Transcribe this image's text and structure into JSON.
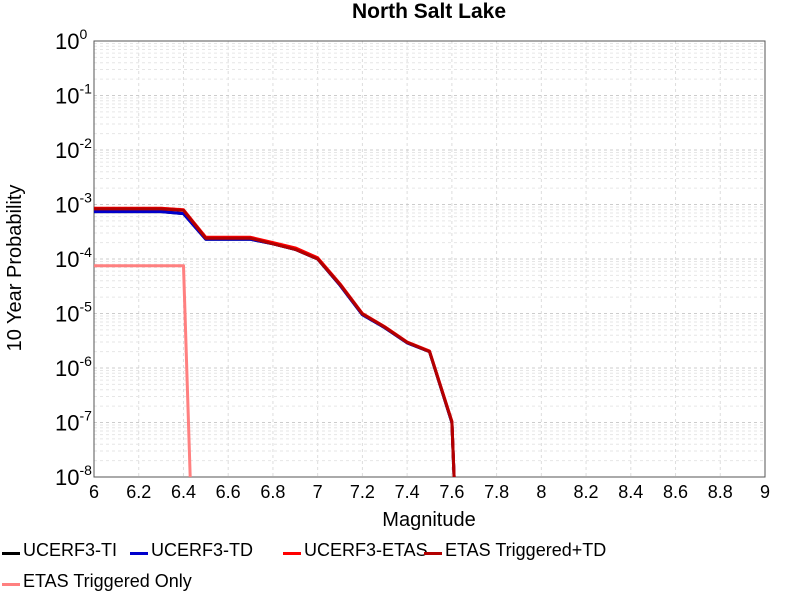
{
  "chart_data": {
    "type": "line",
    "title": "North Salt Lake",
    "xlabel": "Magnitude",
    "ylabel": "10 Year Probability",
    "xlim": [
      6,
      9
    ],
    "ylim": [
      1e-08,
      1
    ],
    "yscale": "log",
    "grid": true,
    "legend_position": "bottom",
    "x_ticks": [
      "6",
      "6.2",
      "6.4",
      "6.6",
      "6.8",
      "7",
      "7.2",
      "7.4",
      "7.6",
      "7.8",
      "8",
      "8.2",
      "8.4",
      "8.6",
      "8.8",
      "9"
    ],
    "y_ticks": [
      {
        "base": "10",
        "exp": "0"
      },
      {
        "base": "10",
        "exp": "-1"
      },
      {
        "base": "10",
        "exp": "-2"
      },
      {
        "base": "10",
        "exp": "-3"
      },
      {
        "base": "10",
        "exp": "-4"
      },
      {
        "base": "10",
        "exp": "-5"
      },
      {
        "base": "10",
        "exp": "-6"
      },
      {
        "base": "10",
        "exp": "-7"
      },
      {
        "base": "10",
        "exp": "-8"
      }
    ],
    "series": [
      {
        "name": "UCERF3-TI",
        "color": "#000000",
        "x": [
          6.0,
          6.1,
          6.2,
          6.3,
          6.4,
          6.5,
          6.6,
          6.7,
          6.8,
          6.9,
          7.0,
          7.1,
          7.2,
          7.3,
          7.4,
          7.5,
          7.6,
          7.61
        ],
        "y": [
          0.00074,
          0.00074,
          0.00074,
          0.00074,
          0.00068,
          0.00023,
          0.00023,
          0.00023,
          0.00019,
          0.00015,
          0.0001,
          3.3e-05,
          9.5e-06,
          5.5e-06,
          2.9e-06,
          2e-06,
          1e-07,
          1e-08
        ]
      },
      {
        "name": "UCERF3-TD",
        "color": "#0000cc",
        "x": [
          6.0,
          6.1,
          6.2,
          6.3,
          6.4,
          6.5,
          6.6,
          6.7,
          6.8,
          6.9,
          7.0,
          7.1,
          7.2,
          7.3,
          7.4,
          7.5,
          7.6,
          7.61
        ],
        "y": [
          0.00074,
          0.00074,
          0.00074,
          0.00074,
          0.00068,
          0.00023,
          0.00023,
          0.00023,
          0.00019,
          0.00015,
          0.0001,
          3.3e-05,
          9.5e-06,
          5.5e-06,
          2.9e-06,
          2e-06,
          1e-07,
          1e-08
        ]
      },
      {
        "name": "UCERF3-ETAS",
        "color": "#ff0000",
        "x": [
          6.0,
          6.1,
          6.2,
          6.3,
          6.4,
          6.5,
          6.6,
          6.7,
          6.8,
          6.9,
          7.0,
          7.1,
          7.2,
          7.3,
          7.4,
          7.5,
          7.6,
          7.61
        ],
        "y": [
          0.00085,
          0.00085,
          0.00085,
          0.00085,
          0.0008,
          0.00025,
          0.00025,
          0.00025,
          0.0002,
          0.00016,
          0.000105,
          3.5e-05,
          1e-05,
          5.7e-06,
          3e-06,
          2.05e-06,
          1.05e-07,
          1e-08
        ]
      },
      {
        "name": "ETAS Triggered+TD",
        "color": "#b30000",
        "x": [
          6.0,
          6.1,
          6.2,
          6.3,
          6.4,
          6.5,
          6.6,
          6.7,
          6.8,
          6.9,
          7.0,
          7.1,
          7.2,
          7.3,
          7.4,
          7.5,
          7.6,
          7.61
        ],
        "y": [
          0.00083,
          0.00083,
          0.00083,
          0.00083,
          0.00078,
          0.00024,
          0.00024,
          0.00024,
          0.00019,
          0.00015,
          0.0001,
          3.4e-05,
          9.8e-06,
          5.6e-06,
          2.95e-06,
          2e-06,
          1.02e-07,
          1e-08
        ]
      },
      {
        "name": "ETAS Triggered Only",
        "color": "#ff8080",
        "x": [
          6.0,
          6.1,
          6.2,
          6.3,
          6.4,
          6.43
        ],
        "y": [
          7.5e-05,
          7.5e-05,
          7.5e-05,
          7.5e-05,
          7.5e-05,
          1e-08
        ]
      }
    ]
  }
}
